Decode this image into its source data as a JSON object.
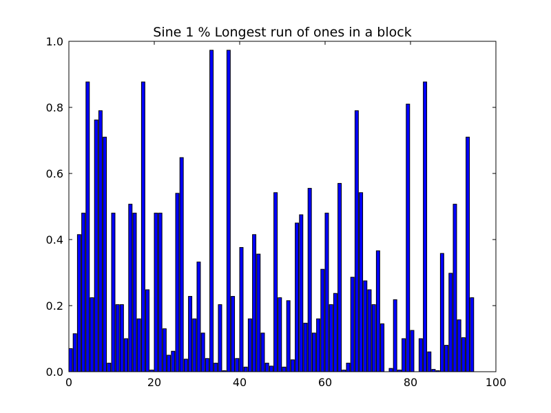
{
  "chart_data": {
    "type": "bar",
    "title": "Sine 1 % Longest run of ones in a block",
    "xlabel": "",
    "ylabel": "",
    "xlim": [
      0,
      100
    ],
    "ylim": [
      0.0,
      1.0
    ],
    "x_ticks": [
      "0",
      "20",
      "40",
      "60",
      "80",
      "100"
    ],
    "y_ticks": [
      "0.0",
      "0.2",
      "0.4",
      "0.6",
      "0.8",
      "1.0"
    ],
    "grid": false,
    "bar_color": "#0000ff",
    "x": [
      0,
      1,
      2,
      3,
      4,
      5,
      6,
      7,
      8,
      9,
      10,
      11,
      12,
      13,
      14,
      15,
      16,
      17,
      18,
      19,
      20,
      21,
      22,
      23,
      24,
      25,
      26,
      27,
      28,
      29,
      30,
      31,
      32,
      33,
      34,
      35,
      36,
      37,
      38,
      39,
      40,
      41,
      42,
      43,
      44,
      45,
      46,
      47,
      48,
      49,
      50,
      51,
      52,
      53,
      54,
      55,
      56,
      57,
      58,
      59,
      60,
      61,
      62,
      63,
      64,
      65,
      66,
      67,
      68,
      69,
      70,
      71,
      72,
      73,
      74,
      75,
      76,
      77,
      78,
      79,
      80,
      81,
      82,
      83,
      84,
      85,
      86,
      87,
      88,
      89,
      90,
      91,
      92,
      93,
      94
    ],
    "values": [
      0.07,
      0.115,
      0.415,
      0.48,
      0.877,
      0.224,
      0.762,
      0.79,
      0.71,
      0.026,
      0.48,
      0.203,
      0.203,
      0.1,
      0.507,
      0.48,
      0.16,
      0.877,
      0.248,
      0.005,
      0.48,
      0.48,
      0.13,
      0.05,
      0.062,
      0.54,
      0.648,
      0.038,
      0.228,
      0.16,
      0.332,
      0.117,
      0.04,
      0.973,
      0.026,
      0.203,
      0.003,
      0.973,
      0.228,
      0.04,
      0.376,
      0.014,
      0.16,
      0.415,
      0.356,
      0.117,
      0.026,
      0.017,
      0.542,
      0.224,
      0.014,
      0.215,
      0.036,
      0.45,
      0.475,
      0.147,
      0.555,
      0.117,
      0.16,
      0.31,
      0.48,
      0.203,
      0.237,
      0.57,
      0.005,
      0.026,
      0.286,
      0.79,
      0.542,
      0.275,
      0.248,
      0.203,
      0.366,
      0.145,
      0.0,
      0.01,
      0.218,
      0.005,
      0.1,
      0.81,
      0.125,
      0.0,
      0.1,
      0.877,
      0.06,
      0.007,
      0.003,
      0.358,
      0.08,
      0.298,
      0.507,
      0.157,
      0.103,
      0.71,
      0.224
    ]
  }
}
